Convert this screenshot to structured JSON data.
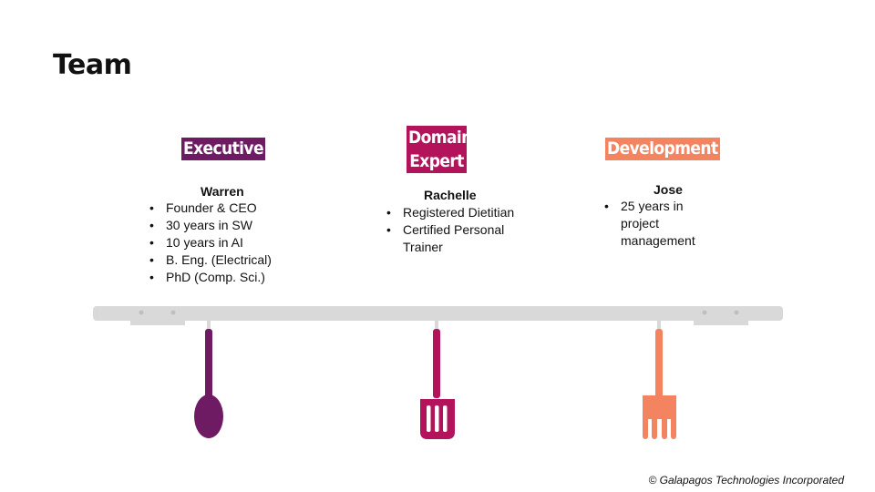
{
  "slide": {
    "title": "Team",
    "footer": "© Galapagos Technologies Incorporated"
  },
  "columns": [
    {
      "role": "Executive",
      "name": "Warren",
      "color": "#6e1b63",
      "utensil_icon": "spoon-icon",
      "bullets": [
        "Founder & CEO",
        "30 years in SW",
        "10 years in AI",
        "B. Eng. (Electrical)",
        "PhD (Comp. Sci.)"
      ]
    },
    {
      "role": "Domain Expert",
      "name": "Rachelle",
      "color": "#b3135a",
      "utensil_icon": "spatula-icon",
      "bullets": [
        "Registered Dietitian",
        "Certified Personal Trainer"
      ]
    },
    {
      "role": "Development",
      "name": "Jose",
      "color": "#f4845f",
      "utensil_icon": "fork-icon",
      "bullets": [
        "25 years in project management"
      ]
    }
  ],
  "rack_color": "#d9d9d9"
}
